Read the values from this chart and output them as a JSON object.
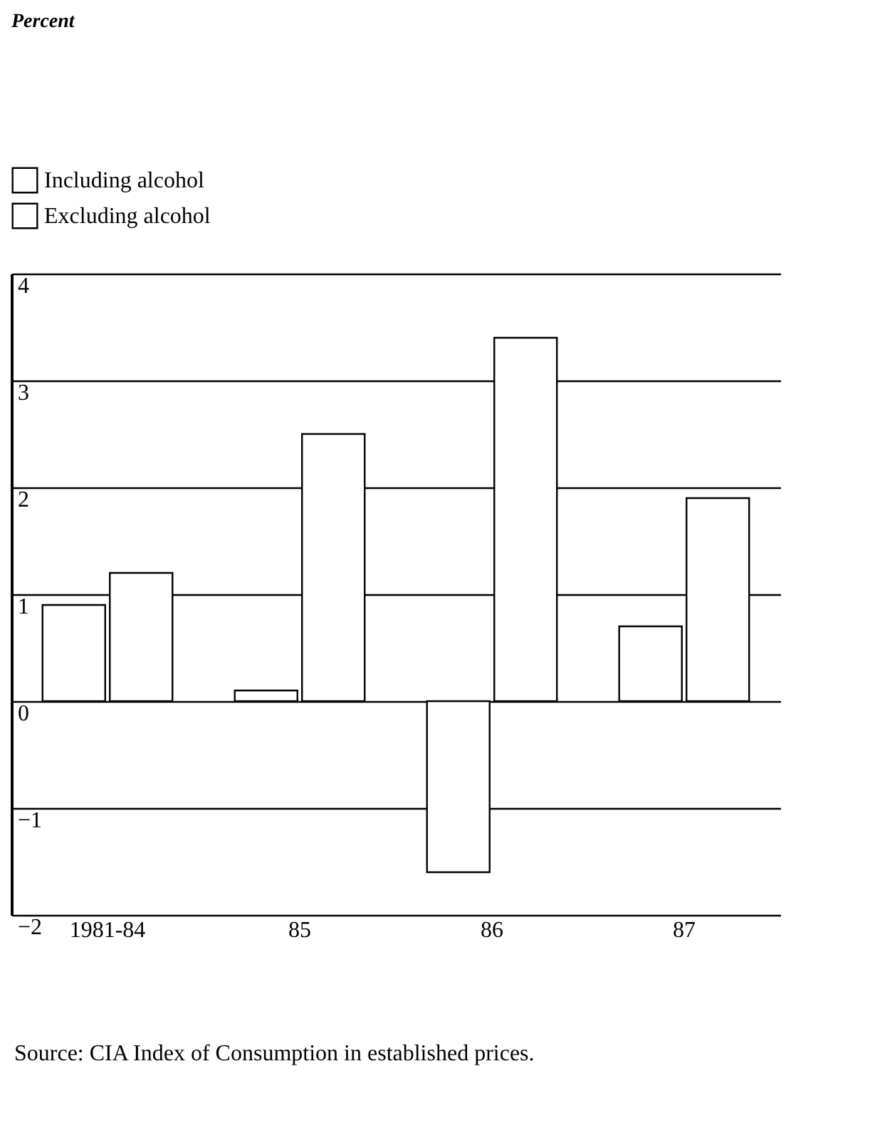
{
  "chart_data": {
    "type": "bar",
    "title": "Percent",
    "categories": [
      "1981-84",
      "85",
      "86",
      "87"
    ],
    "series": [
      {
        "name": "Including alcohol",
        "color": "#ffffff",
        "values": [
          0.9,
          0.1,
          -1.6,
          0.7
        ]
      },
      {
        "name": "Excluding alcohol",
        "color": "#ffffff",
        "values": [
          1.2,
          2.5,
          3.4,
          1.9
        ]
      }
    ],
    "ylim": [
      -2,
      4
    ],
    "yticks": [
      -2,
      -1,
      0,
      1,
      2,
      3,
      4
    ],
    "grid": "y",
    "legend": "top left",
    "annotations": [
      "Source: CIA Index of Consumption in established prices."
    ]
  }
}
